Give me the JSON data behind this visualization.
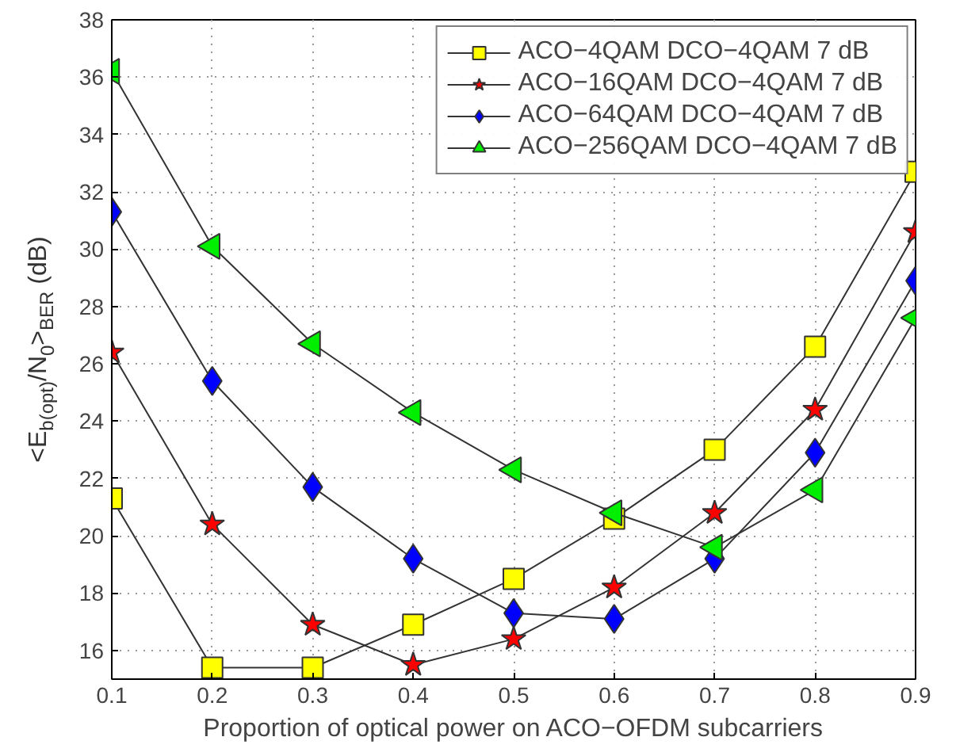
{
  "chart_data": {
    "type": "line",
    "xlabel": "Proportion of optical power on ACO−OFDM subcarriers",
    "ylabel": "<E$_{b(opt)}$/N$_{0}$>$_{BER}$ (dB)",
    "x": [
      0.1,
      0.2,
      0.3,
      0.4,
      0.5,
      0.6,
      0.7,
      0.8,
      0.9
    ],
    "xlim": [
      0.1,
      0.9
    ],
    "xticks": [
      0.1,
      0.2,
      0.3,
      0.4,
      0.5,
      0.6,
      0.7,
      0.8,
      0.9
    ],
    "ylim": [
      15,
      38
    ],
    "yticks": [
      16,
      18,
      20,
      22,
      24,
      26,
      28,
      30,
      32,
      34,
      36,
      38
    ],
    "grid": true,
    "legend": "top right",
    "line_style": "solid",
    "series": [
      {
        "name": "ACO−4QAM DCO−4QAM 7 dB",
        "color": "#ffff00",
        "marker": "square",
        "values": [
          21.3,
          15.4,
          15.4,
          16.9,
          18.5,
          20.6,
          23.0,
          26.6,
          32.7
        ]
      },
      {
        "name": "ACO−16QAM DCO−4QAM 7 dB",
        "color": "#ff0000",
        "marker": "star",
        "values": [
          26.4,
          20.4,
          16.9,
          15.5,
          16.4,
          18.2,
          20.8,
          24.4,
          30.6
        ]
      },
      {
        "name": "ACO−64QAM DCO−4QAM 7 dB",
        "color": "#0000ff",
        "marker": "diamond",
        "values": [
          31.3,
          25.4,
          21.7,
          19.2,
          17.3,
          17.1,
          19.2,
          22.9,
          28.9
        ]
      },
      {
        "name": "ACO−256QAM DCO−4QAM 7 dB",
        "color": "#00ee00",
        "marker": "triangle_left",
        "values": [
          36.2,
          30.1,
          26.7,
          24.3,
          22.3,
          20.8,
          19.6,
          21.6,
          27.6
        ]
      }
    ]
  }
}
